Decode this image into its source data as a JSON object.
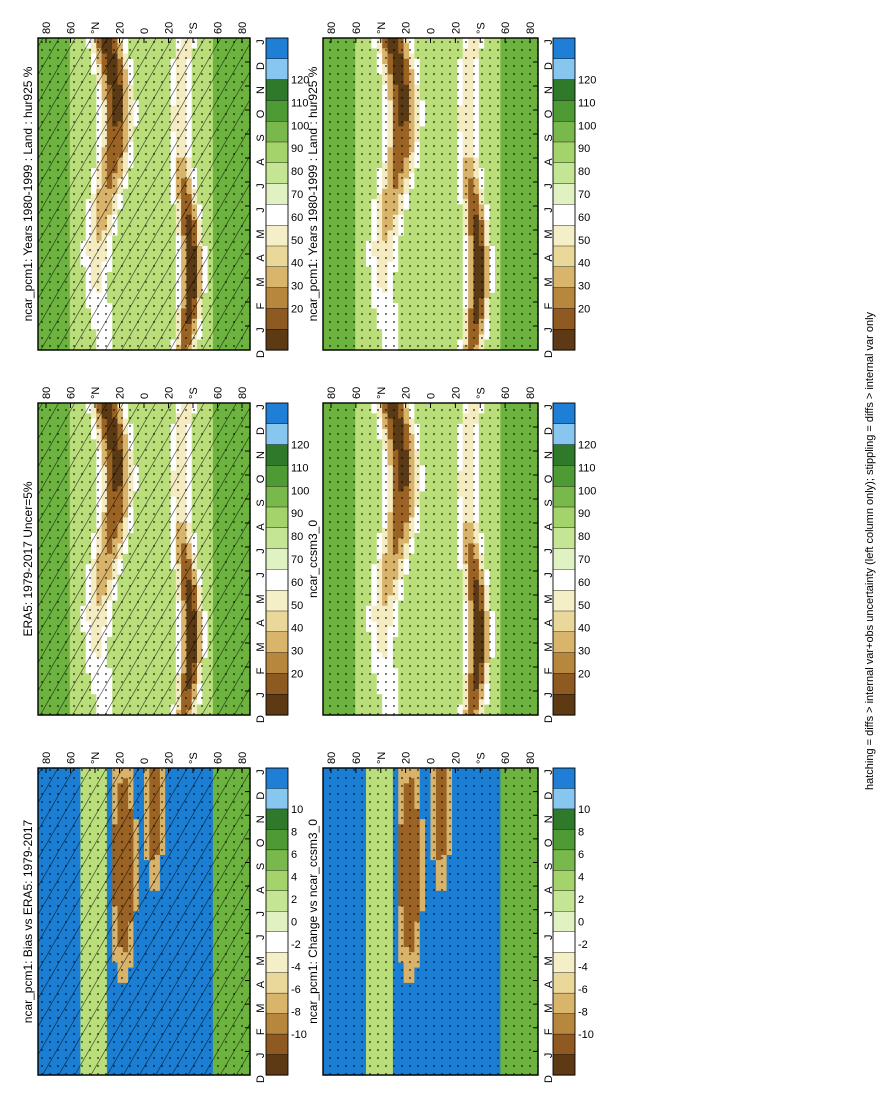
{
  "footnote": "hatching = diffs > internal var+obs uncertainty (left column only); stippling = diffs > internal var only",
  "colors": {
    "bias_positive_strong": "#1a7fd4",
    "bias_positive_light": "#7ec4f0",
    "green_dark": "#2f7a2a",
    "green_mid": "#6db33f",
    "green_light": "#b9de7a",
    "cream": "#f4ecc0",
    "tan": "#d9b36a",
    "brown": "#9a6324",
    "brown_dark": "#5a3a14"
  },
  "chart_data": [
    {
      "type": "heatmap",
      "title": "ncar_pcm1: Years 1980-1999 : Land : hur925 %",
      "categories": [
        "D",
        "J",
        "F",
        "M",
        "A",
        "M",
        "J",
        "J",
        "A",
        "S",
        "O",
        "N",
        "D",
        "J"
      ],
      "ylabels": [
        "80",
        "60",
        "°N",
        "20",
        "0",
        "20",
        "°S",
        "60",
        "80"
      ],
      "colorbar": [
        "120",
        "110",
        "100",
        "90",
        "80",
        "70",
        "60",
        "50",
        "40",
        "30",
        "20"
      ],
      "hatching": true,
      "stippling": true
    },
    {
      "type": "heatmap",
      "title": "ncar_pcm1: Years 1980-1999 : Land : hur925 %",
      "categories": [
        "D",
        "J",
        "F",
        "M",
        "A",
        "M",
        "J",
        "J",
        "A",
        "S",
        "O",
        "N",
        "D",
        "J"
      ],
      "ylabels": [
        "80",
        "60",
        "°N",
        "20",
        "0",
        "20",
        "°S",
        "60",
        "80"
      ],
      "colorbar": [
        "120",
        "110",
        "100",
        "90",
        "80",
        "70",
        "60",
        "50",
        "40",
        "30",
        "20"
      ],
      "hatching": false,
      "stippling": true
    },
    {
      "type": "heatmap",
      "title": "ERA5: 1979-2017 Uncer=5%",
      "categories": [
        "D",
        "J",
        "F",
        "M",
        "A",
        "M",
        "J",
        "J",
        "A",
        "S",
        "O",
        "N",
        "D",
        "J"
      ],
      "ylabels": [
        "80",
        "60",
        "°N",
        "20",
        "0",
        "20",
        "°S",
        "60",
        "80"
      ],
      "colorbar": [
        "120",
        "110",
        "100",
        "90",
        "80",
        "70",
        "60",
        "50",
        "40",
        "30",
        "20"
      ],
      "hatching": true,
      "stippling": true
    },
    {
      "type": "heatmap",
      "title": "ncar_ccsm3_0",
      "categories": [
        "D",
        "J",
        "F",
        "M",
        "A",
        "M",
        "J",
        "J",
        "A",
        "S",
        "O",
        "N",
        "D",
        "J"
      ],
      "ylabels": [
        "80",
        "60",
        "°N",
        "20",
        "0",
        "20",
        "°S",
        "60",
        "80"
      ],
      "colorbar": [
        "120",
        "110",
        "100",
        "90",
        "80",
        "70",
        "60",
        "50",
        "40",
        "30",
        "20"
      ],
      "hatching": false,
      "stippling": true
    },
    {
      "type": "heatmap",
      "title": "ncar_pcm1: Bias vs ERA5: 1979-2017",
      "categories": [
        "D",
        "J",
        "F",
        "M",
        "A",
        "M",
        "J",
        "J",
        "A",
        "S",
        "O",
        "N",
        "D",
        "J"
      ],
      "ylabels": [
        "80",
        "60",
        "°N",
        "20",
        "0",
        "20",
        "°S",
        "60",
        "80"
      ],
      "colorbar": [
        "10",
        "8",
        "6",
        "4",
        "2",
        "0",
        "-2",
        "-4",
        "-6",
        "-8",
        "-10"
      ],
      "hatching": true,
      "stippling": true
    },
    {
      "type": "heatmap",
      "title": "ncar_pcm1: Change vs ncar_ccsm3_0",
      "categories": [
        "D",
        "J",
        "F",
        "M",
        "A",
        "M",
        "J",
        "J",
        "A",
        "S",
        "O",
        "N",
        "D",
        "J"
      ],
      "ylabels": [
        "80",
        "60",
        "°N",
        "20",
        "0",
        "20",
        "°S",
        "60",
        "80"
      ],
      "colorbar": [
        "10",
        "8",
        "6",
        "4",
        "2",
        "0",
        "-2",
        "-4",
        "-6",
        "-8",
        "-10"
      ],
      "hatching": false,
      "stippling": true
    }
  ]
}
